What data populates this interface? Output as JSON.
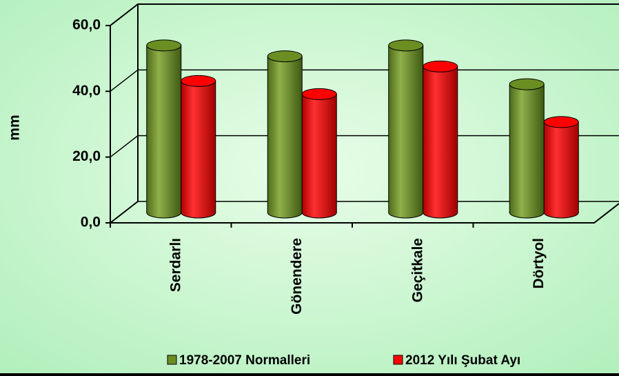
{
  "chart_data": {
    "type": "bar3d",
    "y_label": "mm",
    "categories": [
      "Serdarlı",
      "Gönendere",
      "Geçitkale",
      "Dörtyol"
    ],
    "series": [
      {
        "name": "1978-2007 Normalleri",
        "color": "#6b8e23",
        "values": [
          50.8,
          47.5,
          50.8,
          39
        ]
      },
      {
        "name": "2012 Yılı Şubat Ayı",
        "color": "#ff0000",
        "values": [
          40,
          36,
          44.4,
          27.5
        ]
      }
    ],
    "ylim": [
      0,
      60
    ],
    "yticks": [
      {
        "value": 0,
        "label": "0,0"
      },
      {
        "value": 20,
        "label": "20,0"
      },
      {
        "value": 40,
        "label": "40,0"
      },
      {
        "value": 60,
        "label": "60,0"
      }
    ],
    "grid": true,
    "legend": "bottom"
  }
}
